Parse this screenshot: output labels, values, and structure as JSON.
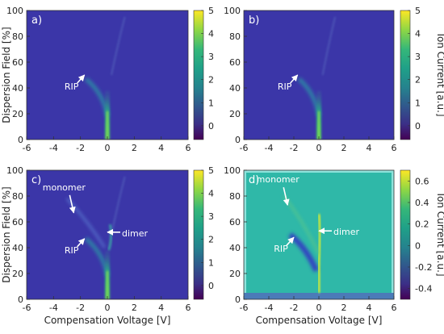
{
  "chart_data": [
    {
      "type": "heatmap",
      "panel_label": "a)",
      "xlabel": "",
      "ylabel": "Dispersion Field [%]",
      "xlim": [
        -6,
        6
      ],
      "ylim": [
        0,
        100
      ],
      "x_ticks": [
        "-6",
        "-4",
        "-2",
        "0",
        "2",
        "4",
        "6"
      ],
      "y_ticks": [
        "0",
        "20",
        "40",
        "60",
        "80",
        "100"
      ],
      "colorbar": {
        "label": "",
        "range": [
          -0.6,
          5
        ],
        "ticks": [
          "0",
          "1",
          "2",
          "3",
          "4",
          "5"
        ]
      },
      "annotations": [
        {
          "text": "RIP",
          "target": [
            -1.7,
            50
          ]
        }
      ]
    },
    {
      "type": "heatmap",
      "panel_label": "b)",
      "xlabel": "",
      "ylabel": "",
      "xlim": [
        -6,
        6
      ],
      "ylim": [
        0,
        100
      ],
      "x_ticks": [
        "-6",
        "-4",
        "-2",
        "0",
        "2",
        "4",
        "6"
      ],
      "y_ticks": [
        "0",
        "20",
        "40",
        "60",
        "80",
        "100"
      ],
      "colorbar": {
        "label": "Ion Current [a.u.]",
        "range": [
          -0.6,
          5
        ],
        "ticks": [
          "0",
          "1",
          "2",
          "3",
          "4",
          "5"
        ]
      },
      "annotations": [
        {
          "text": "RIP",
          "target": [
            -1.7,
            50
          ]
        }
      ]
    },
    {
      "type": "heatmap",
      "panel_label": "c)",
      "xlabel": "Compensation Voltage [V]",
      "ylabel": "Dispersion Field [%]",
      "xlim": [
        -6,
        6
      ],
      "ylim": [
        0,
        100
      ],
      "x_ticks": [
        "-6",
        "-4",
        "-2",
        "0",
        "2",
        "4",
        "6"
      ],
      "y_ticks": [
        "0",
        "20",
        "40",
        "60",
        "80",
        "100"
      ],
      "colorbar": {
        "label": "",
        "range": [
          -0.6,
          5
        ],
        "ticks": [
          "0",
          "1",
          "2",
          "3",
          "4",
          "5"
        ]
      },
      "annotations": [
        {
          "text": "monomer",
          "target": [
            -2.5,
            67
          ]
        },
        {
          "text": "dimer",
          "target": [
            0.0,
            52
          ]
        },
        {
          "text": "RIP",
          "target": [
            -1.7,
            47
          ]
        }
      ]
    },
    {
      "type": "heatmap",
      "panel_label": "d)",
      "xlabel": "Compensation Voltage [V]",
      "ylabel": "",
      "xlim": [
        -6,
        6
      ],
      "ylim": [
        0,
        100
      ],
      "x_ticks": [
        "-6",
        "-4",
        "-2",
        "0",
        "2",
        "4",
        "6"
      ],
      "y_ticks": [
        "0",
        "20",
        "40",
        "60",
        "80",
        "100"
      ],
      "colorbar": {
        "label": "Ion Current [a.u.]",
        "range": [
          -0.5,
          0.7
        ],
        "ticks": [
          "-0.4",
          "-0.2",
          "0",
          "0.2",
          "0.4",
          "0.6"
        ]
      },
      "annotations": [
        {
          "text": "monomer",
          "target": [
            -2.5,
            73
          ]
        },
        {
          "text": "dimer",
          "target": [
            0.0,
            53
          ]
        },
        {
          "text": "RIP",
          "target": [
            -2.0,
            48
          ]
        }
      ]
    }
  ]
}
